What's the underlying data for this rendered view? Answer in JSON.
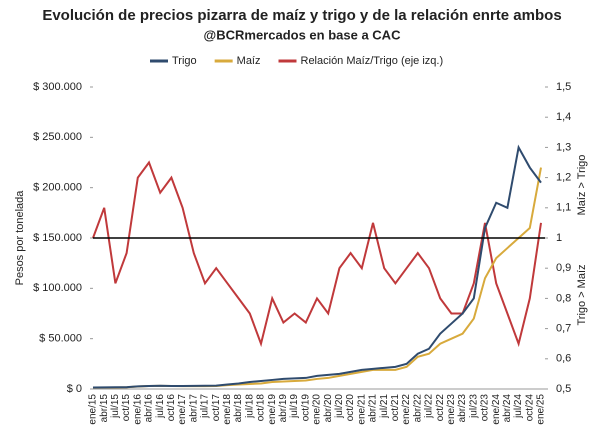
{
  "chart_data": {
    "type": "line",
    "title": "Evolución de precios pizarra de maíz y trigo y de la relación enrte ambos",
    "subtitle": "@BCRmercados en base a CAC",
    "ylabel": "Pesos por tonelada",
    "y2_labels": [
      "Maíz > Trigo",
      "Trigo > Maíz"
    ],
    "categories": [
      "ene/15",
      "abr/15",
      "jul/15",
      "oct/15",
      "ene/16",
      "abr/16",
      "jul/16",
      "oct/16",
      "ene/17",
      "abr/17",
      "jul/17",
      "oct/17",
      "ene/18",
      "abr/18",
      "jul/18",
      "oct/18",
      "ene/19",
      "abr/19",
      "jul/19",
      "oct/19",
      "ene/20",
      "abr/20",
      "jul/20",
      "oct/20",
      "ene/21",
      "abr/21",
      "jul/21",
      "oct/21",
      "ene/22",
      "abr/22",
      "jul/22",
      "oct/22",
      "ene/23",
      "abr/23",
      "jul/23",
      "oct/23",
      "ene/24",
      "abr/24",
      "jul/24",
      "oct/24",
      "ene/25"
    ],
    "series": [
      {
        "name": "Trigo",
        "color": "#2f4b6e",
        "values": [
          1500,
          1600,
          1700,
          1800,
          2600,
          3000,
          3200,
          3000,
          3000,
          3100,
          3200,
          3400,
          4500,
          5500,
          7000,
          8000,
          9000,
          10000,
          10500,
          11000,
          13000,
          14000,
          15000,
          17000,
          19000,
          20000,
          21000,
          22000,
          25000,
          35000,
          40000,
          55000,
          65000,
          75000,
          90000,
          160000,
          185000,
          180000,
          240000,
          220000,
          205000
        ]
      },
      {
        "name": "Maíz",
        "color": "#d8aa3c",
        "values": [
          1400,
          1500,
          1500,
          1700,
          2500,
          3000,
          3100,
          3000,
          2900,
          2800,
          2800,
          3000,
          3800,
          4500,
          5000,
          5500,
          7000,
          7500,
          8000,
          8500,
          10000,
          11000,
          13000,
          15000,
          17000,
          19000,
          19000,
          19000,
          22000,
          32000,
          35000,
          45000,
          50000,
          55000,
          70000,
          110000,
          130000,
          140000,
          150000,
          160000,
          220000
        ]
      },
      {
        "name": "Relación Maíz/Trigo (eje izq.)",
        "color": "#c0393b",
        "axis": "y2",
        "values": [
          1.0,
          1.1,
          0.85,
          0.95,
          1.2,
          1.25,
          1.15,
          1.2,
          1.1,
          0.95,
          0.85,
          0.9,
          0.85,
          0.8,
          0.75,
          0.65,
          0.8,
          0.72,
          0.75,
          0.72,
          0.8,
          0.75,
          0.9,
          0.95,
          0.9,
          1.05,
          0.9,
          0.85,
          0.9,
          0.95,
          0.9,
          0.8,
          0.75,
          0.75,
          0.85,
          1.05,
          0.85,
          0.75,
          0.65,
          0.8,
          1.05
        ]
      }
    ],
    "ylim": [
      0,
      300000
    ],
    "yticks": [
      {
        "value": 0,
        "label": "$ 0"
      },
      {
        "value": 50000,
        "label": "$ 50.000"
      },
      {
        "value": 100000,
        "label": "$ 100.000"
      },
      {
        "value": 150000,
        "label": "$ 150.000"
      },
      {
        "value": 200000,
        "label": "$ 200.000"
      },
      {
        "value": 250000,
        "label": "$ 250.000"
      },
      {
        "value": 300000,
        "label": "$ 300.000"
      }
    ],
    "y2lim": [
      0.5,
      1.5
    ],
    "y2ticks": [
      {
        "value": 0.5,
        "label": "0,5"
      },
      {
        "value": 0.6,
        "label": "0,6"
      },
      {
        "value": 0.7,
        "label": "0,7"
      },
      {
        "value": 0.8,
        "label": "0,8"
      },
      {
        "value": 0.9,
        "label": "0,9"
      },
      1,
      {
        "value": 1.1,
        "label": "1,1"
      },
      {
        "value": 1.2,
        "label": "1,2"
      },
      {
        "value": 1.3,
        "label": "1,3"
      },
      {
        "value": 1.4,
        "label": "1,4"
      },
      {
        "value": 1.5,
        "label": "1,5"
      }
    ],
    "y2_reference": 1,
    "legend": "top"
  }
}
